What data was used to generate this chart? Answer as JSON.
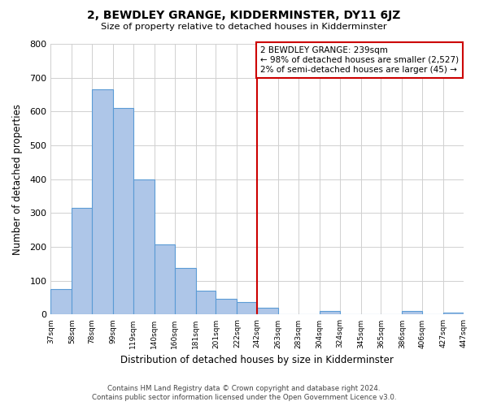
{
  "title": "2, BEWDLEY GRANGE, KIDDERMINSTER, DY11 6JZ",
  "subtitle": "Size of property relative to detached houses in Kidderminster",
  "xlabel": "Distribution of detached houses by size in Kidderminster",
  "ylabel": "Number of detached properties",
  "bar_edges": [
    37,
    58,
    78,
    99,
    119,
    140,
    160,
    181,
    201,
    222,
    242,
    263,
    283,
    304,
    324,
    345,
    365,
    386,
    406,
    427,
    447
  ],
  "bar_heights": [
    75,
    315,
    665,
    610,
    400,
    207,
    137,
    70,
    47,
    37,
    20,
    0,
    0,
    10,
    0,
    0,
    0,
    10,
    0,
    5
  ],
  "bar_color": "#aec6e8",
  "bar_edgecolor": "#5b9bd5",
  "vline_x": 242,
  "vline_color": "#cc0000",
  "ylim": [
    0,
    800
  ],
  "annotation_box_text": "2 BEWDLEY GRANGE: 239sqm\n← 98% of detached houses are smaller (2,527)\n2% of semi-detached houses are larger (45) →",
  "annotation_box_edgecolor": "#cc0000",
  "footer_line1": "Contains HM Land Registry data © Crown copyright and database right 2024.",
  "footer_line2": "Contains public sector information licensed under the Open Government Licence v3.0.",
  "tick_labels": [
    "37sqm",
    "58sqm",
    "78sqm",
    "99sqm",
    "119sqm",
    "140sqm",
    "160sqm",
    "181sqm",
    "201sqm",
    "222sqm",
    "242sqm",
    "263sqm",
    "283sqm",
    "304sqm",
    "324sqm",
    "345sqm",
    "365sqm",
    "386sqm",
    "406sqm",
    "427sqm",
    "447sqm"
  ],
  "background_color": "#ffffff",
  "grid_color": "#d0d0d0"
}
